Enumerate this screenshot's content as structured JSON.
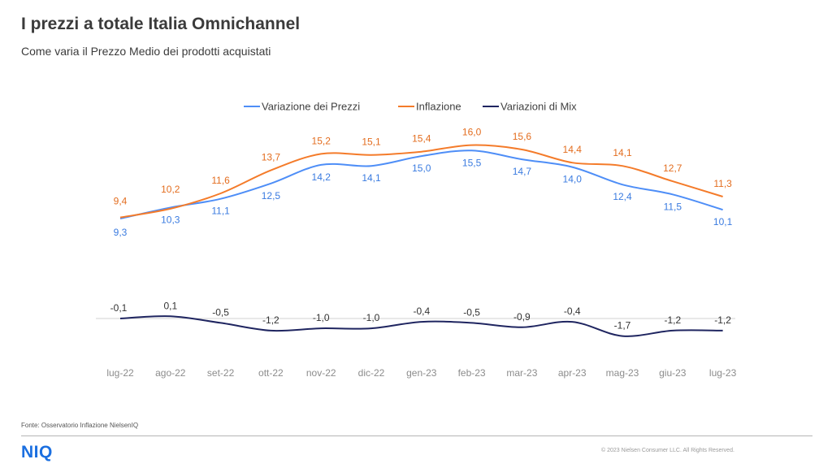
{
  "header": {
    "title": "I prezzi a totale Italia Omnichannel",
    "subtitle": "Come varia il Prezzo Medio dei prodotti acquistati"
  },
  "chart_data": {
    "type": "line",
    "categories": [
      "lug-22",
      "ago-22",
      "set-22",
      "ott-22",
      "nov-22",
      "dic-22",
      "gen-23",
      "feb-23",
      "mar-23",
      "apr-23",
      "mag-23",
      "giu-23",
      "lug-23"
    ],
    "series": [
      {
        "name": "Variazione dei Prezzi",
        "color": "#4e8ef7",
        "label_color": "#3a7be0",
        "values": [
          9.3,
          10.3,
          11.1,
          12.5,
          14.2,
          14.1,
          15.0,
          15.5,
          14.7,
          14.0,
          12.4,
          11.5,
          10.1
        ],
        "labels": [
          "9,3",
          "10,3",
          "11,1",
          "12,5",
          "14,2",
          "14,1",
          "15,0",
          "15,5",
          "14,7",
          "14,0",
          "12,4",
          "11,5",
          "10,1"
        ]
      },
      {
        "name": "Inflazione",
        "color": "#f47b2a",
        "label_color": "#e36d1f",
        "values": [
          9.4,
          10.2,
          11.6,
          13.7,
          15.2,
          15.1,
          15.4,
          16.0,
          15.6,
          14.4,
          14.1,
          12.7,
          11.3
        ],
        "labels": [
          "9,4",
          "10,2",
          "11,6",
          "13,7",
          "15,2",
          "15,1",
          "15,4",
          "16,0",
          "15,6",
          "14,4",
          "14,1",
          "12,7",
          "11,3"
        ]
      },
      {
        "name": "Variazioni di Mix",
        "color": "#1f2560",
        "label_color": "#333333",
        "values": [
          -0.1,
          0.1,
          -0.5,
          -1.2,
          -1.0,
          -1.0,
          -0.4,
          -0.5,
          -0.9,
          -0.4,
          -1.7,
          -1.2,
          -1.2
        ],
        "labels": [
          "-0,1",
          "0,1",
          "-0,5",
          "-1,2",
          "-1,0",
          "-1,0",
          "-0,4",
          "-0,5",
          "-0,9",
          "-0,4",
          "-1,7",
          "-1,2",
          "-1,2"
        ]
      }
    ],
    "legend_position": "top-center",
    "grid": false,
    "axis_color": "#d0d0d0",
    "tick_color": "#8c8c8c"
  },
  "footer": {
    "source": "Fonte: Osservatorio Inflazione NielsenIQ",
    "logo": "NIQ",
    "copyright": "© 2023 Nielsen Consumer LLC. All Rights Reserved."
  }
}
